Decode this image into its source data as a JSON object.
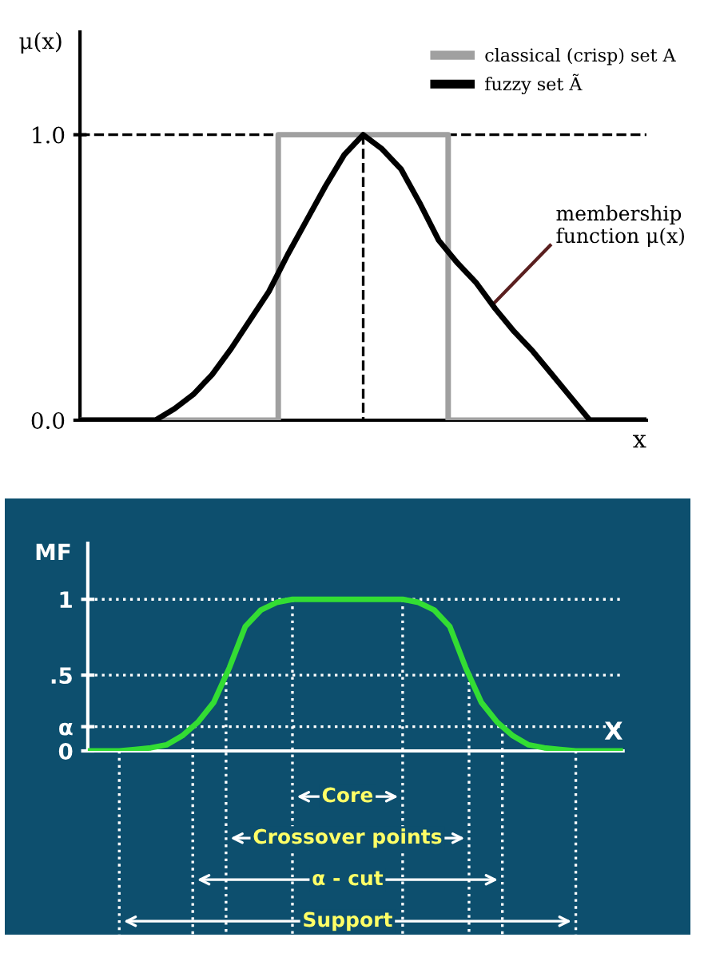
{
  "chart_data": [
    {
      "type": "line",
      "xlabel": "x",
      "ylabel": "μ(x)",
      "ylim": [
        0,
        1.36
      ],
      "categories": [
        null,
        null,
        null,
        null,
        null,
        null,
        null,
        null,
        null,
        null,
        null,
        null,
        null,
        null,
        null,
        null,
        null,
        null,
        null,
        null,
        null,
        null,
        null,
        null,
        null,
        null,
        null,
        null,
        null,
        null,
        null
      ],
      "yticks": [
        {
          "value": 0,
          "label": "0.0"
        },
        {
          "value": 1,
          "label": "1.0"
        }
      ],
      "series": [
        {
          "name": "classical (crisp) set A",
          "type": "step",
          "color": "#a0a0a0",
          "values": [
            0,
            0,
            0,
            0,
            0,
            0,
            0,
            0,
            0,
            0,
            0,
            1,
            1,
            1,
            1,
            1,
            1,
            1,
            1,
            1,
            0,
            0,
            0,
            0,
            0,
            0,
            0,
            0,
            0,
            0,
            0
          ]
        },
        {
          "name": "fuzzy set Ã",
          "color": "#000000",
          "values": [
            0,
            0,
            0,
            0,
            0,
            0.04,
            0.09,
            0.16,
            0.25,
            0.35,
            0.45,
            0.58,
            0.7,
            0.82,
            0.93,
            1.0,
            0.95,
            0.88,
            0.76,
            0.63,
            0.55,
            0.48,
            0.39,
            0.31,
            0.24,
            0.16,
            0.08,
            0,
            0,
            0,
            0
          ]
        }
      ],
      "ref_lines": [
        {
          "axis": "y",
          "value": 1,
          "color": "#000000",
          "line_style": "dashed"
        }
      ],
      "annotations": [
        "membership\nfunction μ(x)"
      ],
      "legend": "top right",
      "grid": false
    },
    {
      "type": "line",
      "xlabel": "X",
      "ylabel": "MF",
      "ylim": [
        0,
        1.37
      ],
      "categories": [
        null,
        null,
        null,
        null,
        null,
        null,
        null,
        null,
        null,
        null,
        null,
        null,
        null,
        null,
        null,
        null,
        null,
        null,
        null,
        null,
        null,
        null,
        null,
        null,
        null,
        null,
        null,
        null,
        null,
        null,
        null,
        null,
        null,
        null,
        null
      ],
      "yticks": [
        0,
        {
          "value": 0.16,
          "label": "α"
        },
        {
          "value": 0.5,
          "label": ".5"
        },
        1
      ],
      "series": [
        {
          "color": "#33dd33",
          "values": [
            0,
            0,
            0,
            0.01,
            0.02,
            0.04,
            0.1,
            0.19,
            0.32,
            0.55,
            0.82,
            0.93,
            0.98,
            1,
            1,
            1,
            1,
            1,
            1,
            1,
            1,
            0.98,
            0.93,
            0.82,
            0.55,
            0.32,
            0.19,
            0.1,
            0.04,
            0.02,
            0.01,
            0,
            0,
            0,
            0
          ]
        }
      ],
      "ref_lines": [
        {
          "axis": "y",
          "value": 1,
          "color": "#ffffff",
          "line_style": "dotted"
        },
        {
          "axis": "y",
          "value": 0.5,
          "color": "#ffffff",
          "line_style": "dotted"
        },
        {
          "axis": "y",
          "value": 0.16,
          "color": "#ffffff",
          "line_style": "dotted"
        }
      ],
      "annotations": [
        "Core",
        "Crossover points",
        "α - cut",
        "Support"
      ],
      "legend": false,
      "grid": false
    }
  ]
}
